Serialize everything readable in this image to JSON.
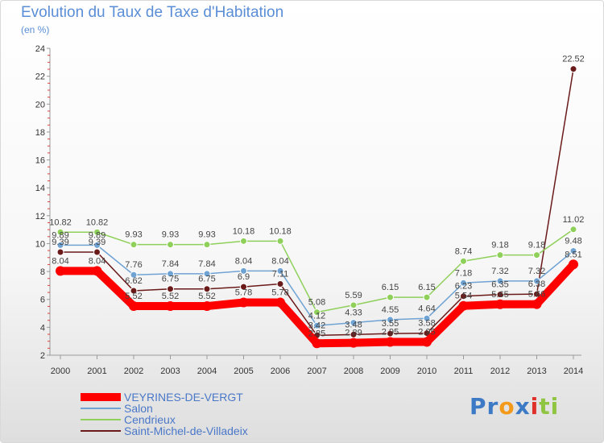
{
  "title": "Evolution du Taux de Taxe d'Habitation",
  "unit": "(en %)",
  "chart_data": {
    "type": "line",
    "title": "Evolution du Taux de Taxe d'Habitation",
    "ylabel": "(en %)",
    "xlabel": "",
    "x": [
      "2000",
      "2001",
      "2002",
      "2003",
      "2004",
      "2005",
      "2006",
      "2007",
      "2008",
      "2009",
      "2010",
      "2011",
      "2012",
      "2013",
      "2014"
    ],
    "ylim": [
      2,
      24
    ],
    "yticks": [
      2,
      4,
      6,
      8,
      10,
      12,
      14,
      16,
      18,
      20,
      22,
      24
    ],
    "grid": false,
    "legend_position": "bottom-left",
    "series": [
      {
        "name": "VEYRINES-DE-VERGT",
        "color": "#ff0000",
        "values": [
          8.04,
          8.04,
          5.52,
          5.52,
          5.52,
          5.78,
          5.78,
          2.85,
          2.89,
          2.95,
          2.95,
          5.54,
          5.65,
          5.66,
          8.51
        ]
      },
      {
        "name": "Salon",
        "color": "#6fa3d4",
        "values": [
          9.89,
          9.89,
          7.76,
          7.84,
          7.84,
          8.04,
          8.04,
          4.12,
          4.33,
          4.55,
          4.64,
          7.18,
          7.32,
          7.32,
          9.48
        ]
      },
      {
        "name": "Cendrieux",
        "color": "#8fd05a",
        "values": [
          10.82,
          10.82,
          9.93,
          9.93,
          9.93,
          10.18,
          10.18,
          5.08,
          5.59,
          6.15,
          6.15,
          8.74,
          9.18,
          9.18,
          11.02
        ]
      },
      {
        "name": "Saint-Michel-de-Villadeix",
        "color": "#6b1a1a",
        "values": [
          9.39,
          9.39,
          6.62,
          6.75,
          6.75,
          6.9,
          7.11,
          3.42,
          3.48,
          3.55,
          3.58,
          6.23,
          6.35,
          6.38,
          22.52
        ]
      }
    ],
    "data_labels": [
      {
        "series": 1,
        "x": 0,
        "text": "9.89"
      },
      {
        "series": 1,
        "x": 1,
        "text": "9.89"
      },
      {
        "series": 3,
        "x": 0,
        "text": "9.39"
      },
      {
        "series": 3,
        "x": 1,
        "text": "9.39"
      },
      {
        "series": 0,
        "x": 0,
        "text": "8.04"
      },
      {
        "series": 0,
        "x": 1,
        "text": "8.04"
      },
      {
        "series": 2,
        "x": 0,
        "text": "10.82"
      },
      {
        "series": 2,
        "x": 1,
        "text": "10.82"
      },
      {
        "series": 2,
        "x": 2,
        "text": "9.93"
      },
      {
        "series": 2,
        "x": 3,
        "text": "9.93"
      },
      {
        "series": 2,
        "x": 4,
        "text": "9.93"
      },
      {
        "series": 2,
        "x": 5,
        "text": "10.18"
      },
      {
        "series": 2,
        "x": 6,
        "text": "10.18"
      },
      {
        "series": 1,
        "x": 2,
        "text": "7.76"
      },
      {
        "series": 1,
        "x": 3,
        "text": "7.84"
      },
      {
        "series": 1,
        "x": 4,
        "text": "7.84"
      },
      {
        "series": 1,
        "x": 5,
        "text": "8.04"
      },
      {
        "series": 1,
        "x": 6,
        "text": "8.04"
      },
      {
        "series": 3,
        "x": 2,
        "text": "6.62"
      },
      {
        "series": 3,
        "x": 3,
        "text": "6.75"
      },
      {
        "series": 3,
        "x": 4,
        "text": "6.75"
      },
      {
        "series": 3,
        "x": 5,
        "text": "6.9"
      },
      {
        "series": 3,
        "x": 6,
        "text": "7.11"
      },
      {
        "series": 0,
        "x": 2,
        "text": "5.52"
      },
      {
        "series": 0,
        "x": 3,
        "text": "5.52"
      },
      {
        "series": 0,
        "x": 4,
        "text": "5.52"
      },
      {
        "series": 0,
        "x": 5,
        "text": "5.78"
      },
      {
        "series": 0,
        "x": 6,
        "text": "5.78"
      },
      {
        "series": 2,
        "x": 7,
        "text": "5.08"
      },
      {
        "series": 2,
        "x": 8,
        "text": "5.59"
      },
      {
        "series": 2,
        "x": 9,
        "text": "6.15"
      },
      {
        "series": 2,
        "x": 10,
        "text": "6.15"
      },
      {
        "series": 1,
        "x": 7,
        "text": "4.12"
      },
      {
        "series": 1,
        "x": 8,
        "text": "4.33"
      },
      {
        "series": 1,
        "x": 9,
        "text": "4.55"
      },
      {
        "series": 1,
        "x": 10,
        "text": "4.64"
      },
      {
        "series": 3,
        "x": 7,
        "text": "3.42"
      },
      {
        "series": 3,
        "x": 8,
        "text": "3.48"
      },
      {
        "series": 3,
        "x": 9,
        "text": "3.55"
      },
      {
        "series": 3,
        "x": 10,
        "text": "3.58"
      },
      {
        "series": 0,
        "x": 7,
        "text": "2.85"
      },
      {
        "series": 0,
        "x": 8,
        "text": "2.89"
      },
      {
        "series": 0,
        "x": 9,
        "text": "2.95"
      },
      {
        "series": 0,
        "x": 10,
        "text": "2.95"
      },
      {
        "series": 2,
        "x": 11,
        "text": "8.74"
      },
      {
        "series": 2,
        "x": 12,
        "text": "9.18"
      },
      {
        "series": 2,
        "x": 13,
        "text": "9.18"
      },
      {
        "series": 2,
        "x": 14,
        "text": "11.02"
      },
      {
        "series": 1,
        "x": 11,
        "text": "7.18"
      },
      {
        "series": 1,
        "x": 12,
        "text": "7.32"
      },
      {
        "series": 1,
        "x": 13,
        "text": "7.32"
      },
      {
        "series": 1,
        "x": 14,
        "text": "9.48"
      },
      {
        "series": 3,
        "x": 11,
        "text": "6.23"
      },
      {
        "series": 3,
        "x": 12,
        "text": "6.35"
      },
      {
        "series": 3,
        "x": 13,
        "text": "6.38"
      },
      {
        "series": 3,
        "x": 14,
        "text": "22.52"
      },
      {
        "series": 0,
        "x": 11,
        "text": "5.54"
      },
      {
        "series": 0,
        "x": 12,
        "text": "5.65"
      },
      {
        "series": 0,
        "x": 13,
        "text": "5.66"
      },
      {
        "series": 0,
        "x": 14,
        "text": "8.51"
      }
    ]
  },
  "brand": {
    "text": "Proxiti",
    "letters": [
      "P",
      "r",
      "o",
      "x",
      "i",
      "t",
      "i"
    ],
    "colors": [
      "#3d7ac6",
      "#3d7ac6",
      "#f39a1b",
      "#3d7ac6",
      "#e0302a",
      "#8fc541",
      "#8fc541"
    ]
  }
}
